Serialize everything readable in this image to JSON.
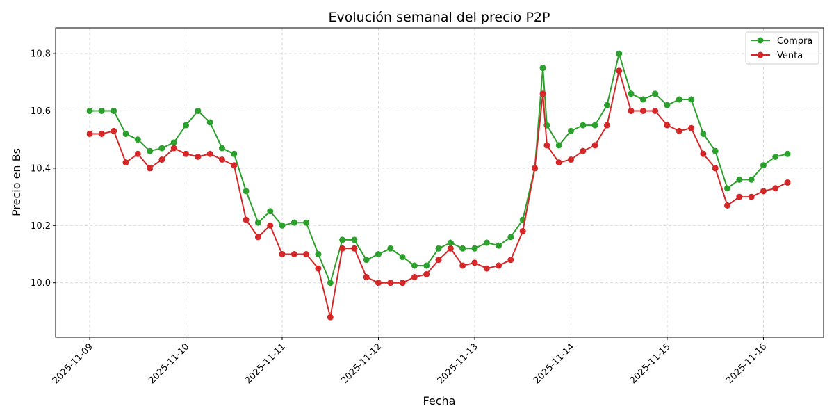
{
  "chart_data": {
    "type": "line",
    "title": "Evolución semanal del precio P2P",
    "xlabel": "Fecha",
    "ylabel": "Precio en Bs",
    "xlim": [
      "2025-11-08T15:30",
      "2025-11-16T15:00"
    ],
    "ylim": [
      9.81,
      10.89
    ],
    "grid": true,
    "legend_position": "top-right",
    "x_ticks": [
      "2025-11-09",
      "2025-11-10",
      "2025-11-11",
      "2025-11-12",
      "2025-11-13",
      "2025-11-14",
      "2025-11-15",
      "2025-11-16"
    ],
    "y_ticks": [
      "10.0",
      "10.2",
      "10.4",
      "10.6",
      "10.8"
    ],
    "x": [
      "2025-11-09T00:00",
      "2025-11-09T03:00",
      "2025-11-09T06:00",
      "2025-11-09T09:00",
      "2025-11-09T12:00",
      "2025-11-09T15:00",
      "2025-11-09T18:00",
      "2025-11-09T21:00",
      "2025-11-10T00:00",
      "2025-11-10T03:00",
      "2025-11-10T06:00",
      "2025-11-10T09:00",
      "2025-11-10T12:00",
      "2025-11-10T15:00",
      "2025-11-10T18:00",
      "2025-11-10T21:00",
      "2025-11-11T00:00",
      "2025-11-11T03:00",
      "2025-11-11T06:00",
      "2025-11-11T09:00",
      "2025-11-11T12:00",
      "2025-11-11T15:00",
      "2025-11-11T18:00",
      "2025-11-11T21:00",
      "2025-11-12T00:00",
      "2025-11-12T03:00",
      "2025-11-12T06:00",
      "2025-11-12T09:00",
      "2025-11-12T12:00",
      "2025-11-12T15:00",
      "2025-11-12T18:00",
      "2025-11-12T21:00",
      "2025-11-13T00:00",
      "2025-11-13T03:00",
      "2025-11-13T06:00",
      "2025-11-13T09:00",
      "2025-11-13T12:00",
      "2025-11-13T15:00",
      "2025-11-13T17:00",
      "2025-11-13T18:00",
      "2025-11-13T21:00",
      "2025-11-14T00:00",
      "2025-11-14T03:00",
      "2025-11-14T06:00",
      "2025-11-14T09:00",
      "2025-11-14T12:00",
      "2025-11-14T15:00",
      "2025-11-14T18:00",
      "2025-11-14T21:00",
      "2025-11-15T00:00",
      "2025-11-15T03:00",
      "2025-11-15T06:00",
      "2025-11-15T09:00",
      "2025-11-15T12:00",
      "2025-11-15T15:00",
      "2025-11-15T18:00",
      "2025-11-15T21:00",
      "2025-11-16T00:00",
      "2025-11-16T03:00",
      "2025-11-16T06:00"
    ],
    "series": [
      {
        "name": "Compra",
        "color": "#2ca02c",
        "values": [
          10.6,
          10.6,
          10.6,
          10.52,
          10.5,
          10.46,
          10.47,
          10.49,
          10.55,
          10.6,
          10.56,
          10.47,
          10.45,
          10.32,
          10.21,
          10.25,
          10.2,
          10.21,
          10.21,
          10.1,
          10.0,
          10.15,
          10.15,
          10.08,
          10.1,
          10.12,
          10.09,
          10.06,
          10.06,
          10.12,
          10.14,
          10.12,
          10.12,
          10.14,
          10.13,
          10.16,
          10.22,
          10.4,
          10.75,
          10.55,
          10.48,
          10.53,
          10.55,
          10.55,
          10.62,
          10.8,
          10.66,
          10.64,
          10.66,
          10.62,
          10.64,
          10.64,
          10.52,
          10.46,
          10.33,
          10.36,
          10.36,
          10.41,
          10.44,
          10.45
        ]
      },
      {
        "name": "Venta",
        "color": "#d62728",
        "values": [
          10.52,
          10.52,
          10.53,
          10.42,
          10.45,
          10.4,
          10.43,
          10.47,
          10.45,
          10.44,
          10.45,
          10.43,
          10.41,
          10.22,
          10.16,
          10.2,
          10.1,
          10.1,
          10.1,
          10.05,
          9.88,
          10.12,
          10.12,
          10.02,
          10.0,
          10.0,
          10.0,
          10.02,
          10.03,
          10.08,
          10.12,
          10.06,
          10.07,
          10.05,
          10.06,
          10.08,
          10.18,
          10.4,
          10.66,
          10.48,
          10.42,
          10.43,
          10.46,
          10.48,
          10.55,
          10.74,
          10.6,
          10.6,
          10.6,
          10.55,
          10.53,
          10.54,
          10.45,
          10.4,
          10.27,
          10.3,
          10.3,
          10.32,
          10.33,
          10.35
        ]
      }
    ]
  }
}
